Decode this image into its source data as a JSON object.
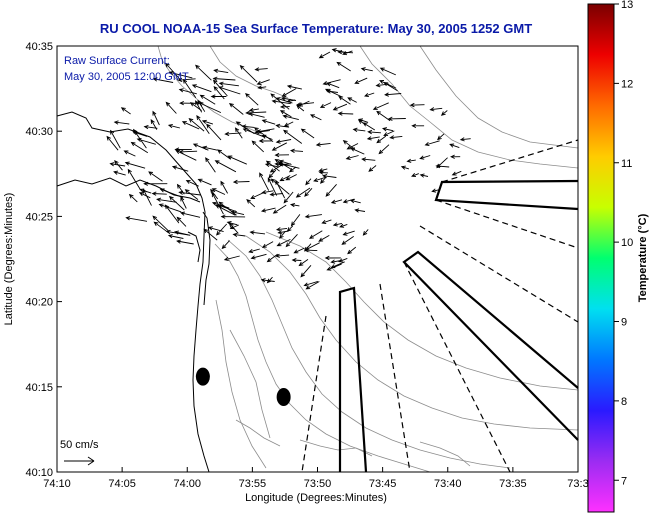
{
  "chart_data": {
    "type": "map",
    "title": "RU COOL  NOAA-15  Sea Surface Temperature:  May 30, 2005 1252 GMT",
    "annotation": [
      "Raw Surface Current:",
      "May 30, 2005 12:00 GMT"
    ],
    "xlabel": "Longitude (Degrees:Minutes)",
    "ylabel": "Latitude (Degrees:Minutes)",
    "x_ticks": [
      "74:10",
      "74:05",
      "74:00",
      "73:55",
      "73:50",
      "73:45",
      "73:40",
      "73:35",
      "73:3"
    ],
    "y_ticks": [
      "40:10",
      "40:15",
      "40:20",
      "40:25",
      "40:30",
      "40:35"
    ],
    "xlim_minutes_west": [
      4450,
      4410
    ],
    "ylim_minutes_north": [
      2410,
      2435
    ],
    "colorbar": {
      "label": "Temperature (°C)",
      "ticks": [
        "7",
        "8",
        "9",
        "10",
        "11",
        "12",
        "13"
      ],
      "range": [
        6.6,
        13
      ],
      "colors": [
        "#ff30ff",
        "#9b2cf2",
        "#2a1aff",
        "#0078ff",
        "#00e0f0",
        "#00ff70",
        "#c8ff00",
        "#ffcc00",
        "#ff6a00",
        "#ee0000",
        "#7a0000"
      ]
    },
    "scale_arrow": {
      "label": "50 cm/s",
      "speed_cm_s": 50
    },
    "vector_field": {
      "description_units": "lon/lat in minutes from 74:10W / 40:10N, speed in cm/s, direction in degrees (0=east, 90=north)",
      "clusters": [
        {
          "lon": 12.0,
          "lat": 18.5,
          "radius": 7.5,
          "speed": 32,
          "dir": 150,
          "count": 120
        },
        {
          "lon": 18.5,
          "lat": 14.5,
          "radius": 5.5,
          "speed": 22,
          "dir": 200,
          "count": 70
        },
        {
          "lon": 21.0,
          "lat": 21.5,
          "radius": 6.0,
          "speed": 24,
          "dir": 175,
          "count": 70
        },
        {
          "lon": 28.0,
          "lat": 19.0,
          "radius": 4.0,
          "speed": 20,
          "dir": 190,
          "count": 25
        }
      ]
    },
    "dots": [
      {
        "lon": 11.2,
        "lat": 5.6
      },
      {
        "lon": 17.4,
        "lat": 4.4
      }
    ]
  }
}
